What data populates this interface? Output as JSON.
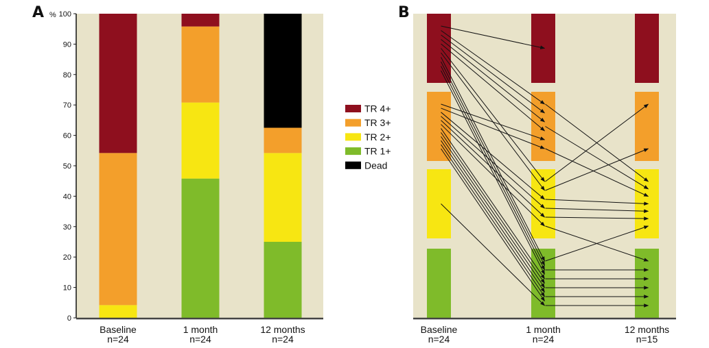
{
  "colors": {
    "background": "#e8e3c9",
    "TR 4+": "#8e0f1e",
    "TR 3+": "#f39f2b",
    "TR 2+": "#f7e612",
    "TR 1+": "#7fbb2a",
    "Dead": "#000000"
  },
  "chart_data": [
    {
      "panel": "A",
      "type": "bar",
      "stacked": true,
      "ylabel": "%",
      "ylim": [
        0,
        100
      ],
      "yticks": [
        0,
        10,
        20,
        30,
        40,
        50,
        60,
        70,
        80,
        90,
        100
      ],
      "categories": [
        "Baseline",
        "1 month",
        "12 months"
      ],
      "category_n": [
        "n=24",
        "n=24",
        "n=24"
      ],
      "series": [
        {
          "name": "TR 1+",
          "values": [
            0,
            45.8,
            25.0
          ]
        },
        {
          "name": "TR 2+",
          "values": [
            4.2,
            25.0,
            29.2
          ]
        },
        {
          "name": "TR 3+",
          "values": [
            50.0,
            25.0,
            8.3
          ]
        },
        {
          "name": "TR 4+",
          "values": [
            45.8,
            4.2,
            0
          ]
        },
        {
          "name": "Dead",
          "values": [
            0,
            0,
            37.5
          ]
        }
      ],
      "legend": {
        "placement": "right",
        "entries": [
          "TR 4+",
          "TR 3+",
          "TR 2+",
          "TR 1+",
          "Dead"
        ]
      }
    },
    {
      "panel": "B",
      "type": "flow",
      "categories": [
        "Baseline",
        "1 month",
        "12 months"
      ],
      "category_n": [
        "n=24",
        "n=24",
        "n=15"
      ],
      "grades": [
        "TR 4+",
        "TR 3+",
        "TR 2+",
        "TR 1+"
      ],
      "transitions": [
        {
          "from_time": 0,
          "from": "TR 4+",
          "to_time": 1,
          "to": "TR 4+",
          "count": 1
        },
        {
          "from_time": 0,
          "from": "TR 4+",
          "to_time": 1,
          "to": "TR 3+",
          "count": 4
        },
        {
          "from_time": 0,
          "from": "TR 4+",
          "to_time": 1,
          "to": "TR 2+",
          "count": 2
        },
        {
          "from_time": 0,
          "from": "TR 4+",
          "to_time": 1,
          "to": "TR 1+",
          "count": 4
        },
        {
          "from_time": 0,
          "from": "TR 3+",
          "to_time": 1,
          "to": "TR 3+",
          "count": 2
        },
        {
          "from_time": 0,
          "from": "TR 3+",
          "to_time": 1,
          "to": "TR 2+",
          "count": 4
        },
        {
          "from_time": 0,
          "from": "TR 3+",
          "to_time": 1,
          "to": "TR 1+",
          "count": 6
        },
        {
          "from_time": 0,
          "from": "TR 2+",
          "to_time": 1,
          "to": "TR 1+",
          "count": 1
        },
        {
          "from_time": 1,
          "from": "TR 3+",
          "to_time": 2,
          "to": "TR 2+",
          "count": 3
        },
        {
          "from_time": 1,
          "from": "TR 2+",
          "to_time": 2,
          "to": "TR 3+",
          "count": 2
        },
        {
          "from_time": 1,
          "from": "TR 2+",
          "to_time": 2,
          "to": "TR 2+",
          "count": 3
        },
        {
          "from_time": 1,
          "from": "TR 2+",
          "to_time": 2,
          "to": "TR 1+",
          "count": 1
        },
        {
          "from_time": 1,
          "from": "TR 1+",
          "to_time": 2,
          "to": "TR 2+",
          "count": 1
        },
        {
          "from_time": 1,
          "from": "TR 1+",
          "to_time": 2,
          "to": "TR 1+",
          "count": 5
        }
      ]
    }
  ]
}
